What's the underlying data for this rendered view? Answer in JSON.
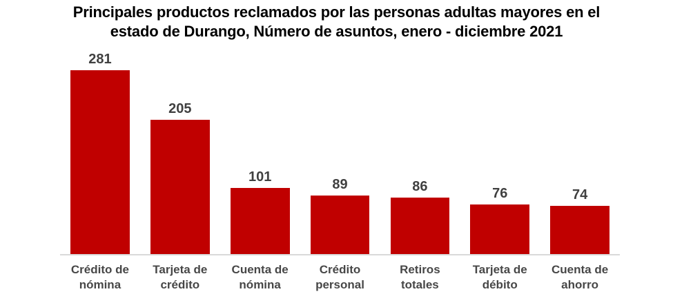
{
  "chart_data": {
    "type": "bar",
    "title": "Principales productos reclamados por las personas adultas mayores en el estado de Durango, Número de asuntos, enero - diciembre 2021",
    "title_lines": [
      "Principales productos reclamados por las personas adultas mayores en el",
      "estado de Durango, Número de asuntos, enero - diciembre 2021"
    ],
    "categories": [
      "Crédito de nómina",
      "Tarjeta de crédito",
      "Cuenta de nómina",
      "Crédito personal",
      "Retiros totales",
      "Tarjeta de débito",
      "Cuenta de ahorro"
    ],
    "values": [
      281,
      205,
      101,
      89,
      86,
      76,
      74
    ],
    "xlabel": "",
    "ylabel": "",
    "ylim": [
      0,
      300
    ],
    "grid": false,
    "legend": false,
    "data_labels_shown": true,
    "colors": {
      "bar": "#c00000",
      "value_label": "#404040",
      "category_label": "#474747",
      "axis_line": "#d9d9d9",
      "title": "#000000",
      "background": "#ffffff"
    }
  }
}
